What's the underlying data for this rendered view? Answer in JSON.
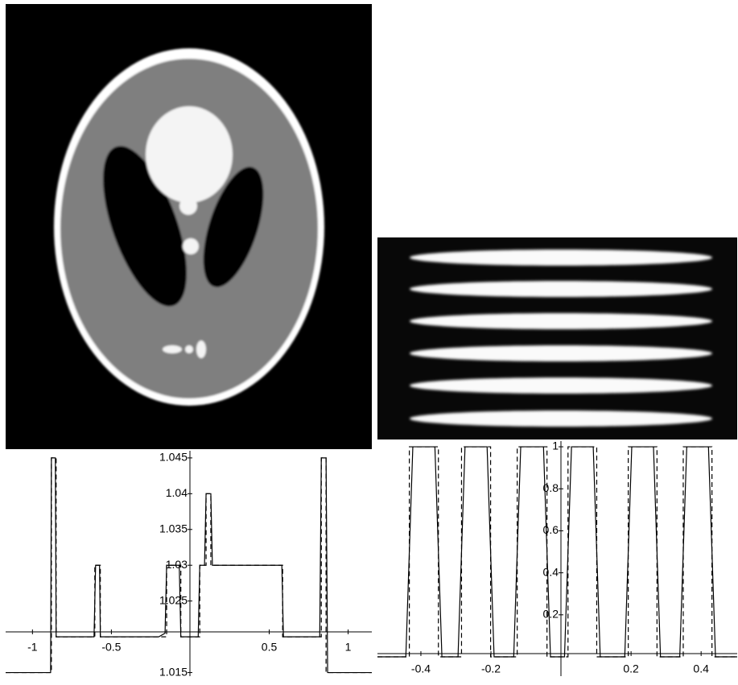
{
  "chart_data": [
    {
      "type": "line",
      "xlim": [
        -1.17,
        1.15
      ],
      "ylim": [
        1.0145,
        1.046
      ],
      "xticks": [
        -1,
        -0.5,
        0.5,
        1
      ],
      "yticks": [
        1.015,
        1.025,
        1.03,
        1.035,
        1.04,
        1.045
      ],
      "series": [
        {
          "color": "#000000",
          "dash": false,
          "x": [
            -1.17,
            -0.885,
            -0.88,
            -0.855,
            -0.85,
            -0.61,
            -0.6,
            -0.575,
            -0.57,
            -0.2,
            -0.16,
            -0.15,
            -0.07,
            -0.06,
            0.05,
            0.06,
            0.09,
            0.1,
            0.13,
            0.14,
            0.58,
            0.59,
            0.82,
            0.83,
            0.86,
            0.87,
            1.15
          ],
          "values": [
            1.015,
            1.015,
            1.045,
            1.045,
            1.02,
            1.02,
            1.03,
            1.03,
            1.02,
            1.02,
            1.0205,
            1.03,
            1.03,
            1.02,
            1.02,
            1.03,
            1.03,
            1.04,
            1.04,
            1.03,
            1.03,
            1.02,
            1.02,
            1.045,
            1.045,
            1.015,
            1.015
          ]
        },
        {
          "color": "#000000",
          "dash": true,
          "x": [
            -1.17,
            -0.88,
            -0.88,
            -0.85,
            -0.85,
            -0.605,
            -0.605,
            -0.57,
            -0.57,
            -0.15,
            -0.15,
            -0.06,
            -0.06,
            0.06,
            0.06,
            0.1,
            0.1,
            0.13,
            0.13,
            0.585,
            0.585,
            0.83,
            0.83,
            0.86,
            0.86,
            1.15
          ],
          "values": [
            1.015,
            1.015,
            1.045,
            1.045,
            1.02,
            1.02,
            1.03,
            1.03,
            1.02,
            1.02,
            1.03,
            1.03,
            1.02,
            1.02,
            1.03,
            1.03,
            1.04,
            1.04,
            1.03,
            1.03,
            1.02,
            1.02,
            1.045,
            1.045,
            1.015,
            1.015
          ]
        }
      ]
    },
    {
      "type": "line",
      "xlim": [
        -0.524,
        0.503
      ],
      "ylim": [
        -0.092,
        1.027
      ],
      "xticks": [
        -0.4,
        -0.2,
        0.2,
        0.4
      ],
      "yticks": [
        0.2,
        0.4,
        0.6,
        0.8,
        1
      ],
      "series": [
        {
          "color": "#000000",
          "dash": false,
          "x": [
            -0.524,
            -0.443,
            -0.423,
            -0.36,
            -0.34,
            -0.294,
            -0.274,
            -0.211,
            -0.191,
            -0.135,
            -0.115,
            -0.05,
            -0.03,
            0.01,
            0.03,
            0.092,
            0.112,
            0.182,
            0.202,
            0.264,
            0.284,
            0.339,
            0.359,
            0.421,
            0.441,
            0.503
          ],
          "values": [
            0,
            0,
            1,
            1,
            0,
            0,
            1,
            1,
            0,
            0,
            1,
            1,
            0,
            0,
            1,
            1,
            0,
            0,
            1,
            1,
            0,
            0,
            1,
            1,
            0,
            0
          ]
        },
        {
          "color": "#000000",
          "dash": true,
          "x": [
            -0.524,
            -0.433,
            -0.433,
            -0.35,
            -0.35,
            -0.284,
            -0.284,
            -0.201,
            -0.201,
            -0.125,
            -0.125,
            -0.04,
            -0.04,
            0.02,
            0.02,
            0.102,
            0.102,
            0.192,
            0.192,
            0.274,
            0.274,
            0.349,
            0.349,
            0.431,
            0.431,
            0.503
          ],
          "values": [
            0,
            0,
            1,
            1,
            0,
            0,
            1,
            1,
            0,
            0,
            1,
            1,
            0,
            0,
            1,
            1,
            0,
            0,
            1,
            1,
            0,
            0,
            1,
            1,
            0,
            0
          ]
        }
      ]
    }
  ]
}
